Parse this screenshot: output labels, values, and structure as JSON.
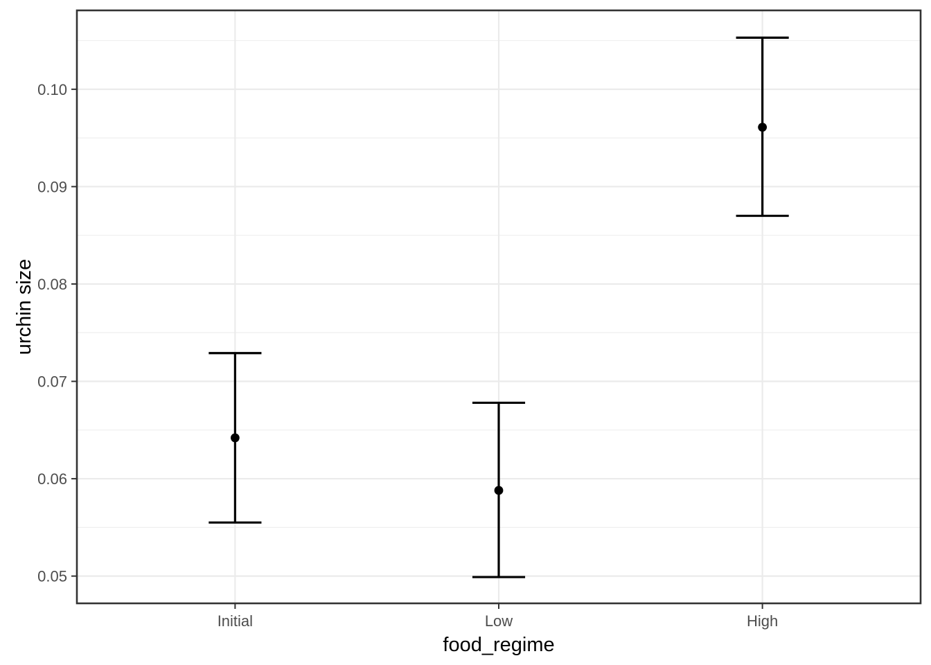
{
  "figure": {
    "background": "#FFFFFF"
  },
  "chart_data": {
    "type": "scatter",
    "subtype": "pointrange-errorbar",
    "title": "",
    "xlabel": "food_regime",
    "ylabel": "urchin size",
    "categories": [
      "Initial",
      "Low",
      "High"
    ],
    "points": [
      {
        "category": "Initial",
        "pred": 0.0642,
        "conf_low": 0.0555,
        "conf_high": 0.0729
      },
      {
        "category": "Low",
        "pred": 0.0588,
        "conf_low": 0.0499,
        "conf_high": 0.0678
      },
      {
        "category": "High",
        "pred": 0.0961,
        "conf_low": 0.087,
        "conf_high": 0.1053
      }
    ],
    "series": [
      {
        "name": "prediction",
        "values": [
          0.0642,
          0.0588,
          0.0961
        ]
      },
      {
        "name": "conf_low",
        "values": [
          0.0555,
          0.0499,
          0.087
        ]
      },
      {
        "name": "conf_high",
        "values": [
          0.0729,
          0.0678,
          0.1053
        ]
      }
    ],
    "ylim": [
      0.0472,
      0.1081
    ],
    "yticks": [
      0.05,
      0.06,
      0.07,
      0.08,
      0.09,
      0.1
    ],
    "ytick_labels": [
      "0.05",
      "0.06",
      "0.07",
      "0.08",
      "0.09",
      "0.10"
    ],
    "yticks_minor": [
      0.055,
      0.065,
      0.075,
      0.085,
      0.095,
      0.105
    ],
    "grid": true,
    "legend": false,
    "errorbar_cap_width_fraction": 0.2,
    "style": {
      "panel_background": "#FFFFFF",
      "panel_border": "#333333",
      "grid_major": "#EBEBEB",
      "grid_minor": "#EFEFEF",
      "tick_color": "#333333",
      "tick_label_color": "#4D4D4D",
      "axis_title_color": "#000000",
      "data_color": "#000000"
    }
  }
}
